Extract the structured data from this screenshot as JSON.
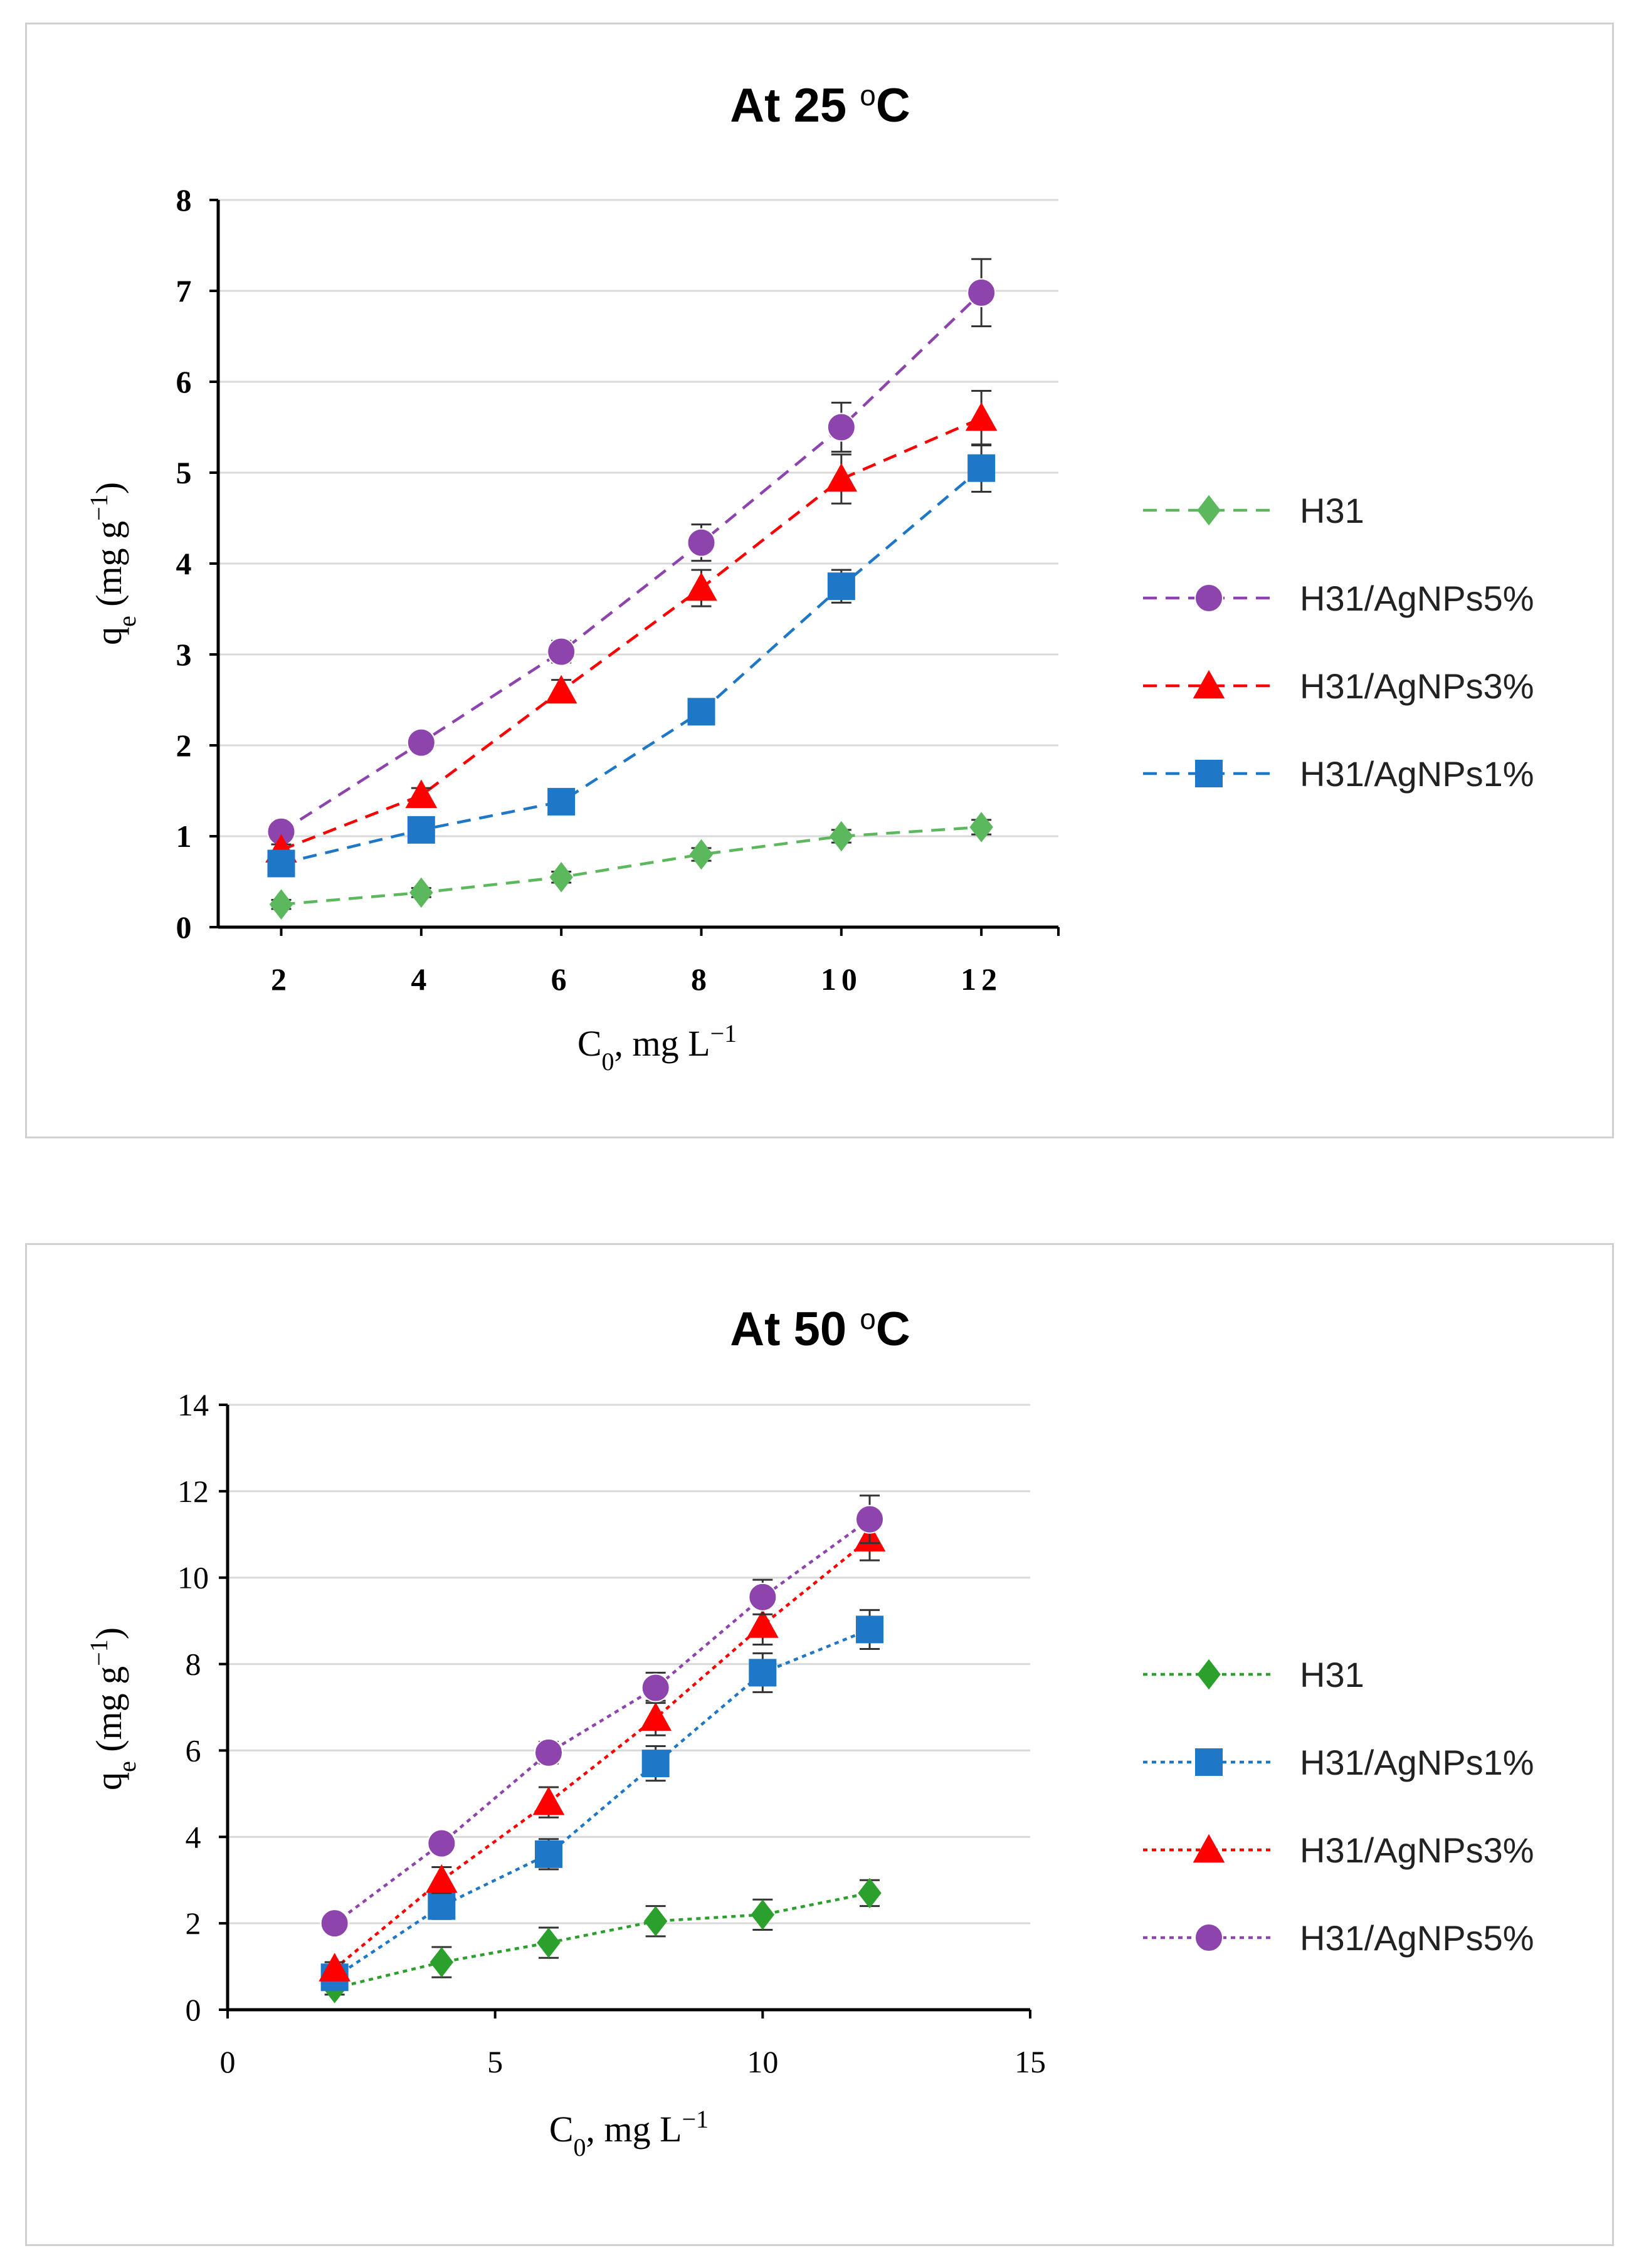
{
  "chart_data": [
    {
      "id": "top",
      "type": "line",
      "title": "At 25 ",
      "title_sup": "o",
      "title_tail": "C",
      "xlabel": "C",
      "xlabel_sub": "0",
      "xlabel_tail": ", mg L",
      "xlabel_sup": "−1",
      "ylabel": "q",
      "ylabel_sub": "e",
      "ylabel_tail": " (mg g",
      "ylabel_sup": "−1",
      "ylabel_end": ")",
      "xlim": [
        1.1,
        13.1
      ],
      "ylim": [
        0,
        8
      ],
      "xticks": [
        "2",
        "4",
        "6",
        "8",
        "10",
        "12"
      ],
      "xtick_values": [
        2,
        4,
        6,
        8,
        10,
        12
      ],
      "yticks": [
        "0",
        "1",
        "2",
        "3",
        "4",
        "5",
        "6",
        "7",
        "8"
      ],
      "ytick_values": [
        0,
        1,
        2,
        3,
        4,
        5,
        6,
        7,
        8
      ],
      "tick_style": "bold",
      "grid": true,
      "legend_position": "right",
      "x": [
        2,
        4,
        6,
        8,
        10,
        12
      ],
      "series": [
        {
          "name": "H31",
          "color": "#5cb85c",
          "marker": "diamond",
          "dash": "dashed",
          "values": [
            0.25,
            0.38,
            0.55,
            0.8,
            1.0,
            1.1
          ],
          "errors": [
            0.05,
            0.05,
            0.06,
            0.07,
            0.07,
            0.08
          ]
        },
        {
          "name": "H31/AgNPs5%",
          "color": "#8e44ad",
          "marker": "circle",
          "dash": "dashed",
          "values": [
            1.05,
            2.03,
            3.03,
            4.23,
            5.5,
            6.98
          ],
          "errors": [
            0.06,
            0.08,
            0.12,
            0.2,
            0.27,
            0.37
          ]
        },
        {
          "name": "H31/AgNPs3%",
          "color": "#ff0000",
          "marker": "triangle",
          "dash": "dashed",
          "values": [
            0.85,
            1.45,
            2.6,
            3.73,
            4.93,
            5.6
          ],
          "errors": [
            0.06,
            0.08,
            0.12,
            0.2,
            0.27,
            0.3
          ]
        },
        {
          "name": "H31/AgNPs1%",
          "color": "#1f77c8",
          "marker": "square",
          "dash": "dashed",
          "values": [
            0.7,
            1.07,
            1.38,
            2.37,
            3.75,
            5.05
          ],
          "errors": [
            0.06,
            0.06,
            0.08,
            0.12,
            0.18,
            0.26
          ]
        }
      ]
    },
    {
      "id": "bottom",
      "type": "line",
      "title": "At 50 ",
      "title_sup": "o",
      "title_tail": "C",
      "xlabel": "C",
      "xlabel_sub": "0",
      "xlabel_tail": ", mg L",
      "xlabel_sup": "−1",
      "ylabel": "q",
      "ylabel_sub": "e",
      "ylabel_tail": " (mg g",
      "ylabel_sup": "−1",
      "ylabel_end": ")",
      "xlim": [
        0,
        15
      ],
      "ylim": [
        0,
        14
      ],
      "xticks": [
        "0",
        "5",
        "10",
        "15"
      ],
      "xtick_values": [
        0,
        5,
        10,
        15
      ],
      "yticks": [
        "0",
        "2",
        "4",
        "6",
        "8",
        "10",
        "12",
        "14"
      ],
      "ytick_values": [
        0,
        2,
        4,
        6,
        8,
        10,
        12,
        14
      ],
      "tick_style": "normal",
      "grid": true,
      "legend_position": "right",
      "x": [
        2,
        4,
        6,
        8,
        10,
        12
      ],
      "series": [
        {
          "name": "H31",
          "color": "#2ca02c",
          "marker": "diamond",
          "dash": "dotted",
          "values": [
            0.5,
            1.1,
            1.55,
            2.05,
            2.2,
            2.7
          ],
          "errors": [
            0.15,
            0.35,
            0.35,
            0.35,
            0.35,
            0.3
          ]
        },
        {
          "name": "H31/AgNPs1%",
          "color": "#1f77c8",
          "marker": "square",
          "dash": "dotted",
          "values": [
            0.75,
            2.4,
            3.6,
            5.7,
            7.8,
            8.8
          ],
          "errors": [
            0.2,
            0.3,
            0.35,
            0.4,
            0.45,
            0.45
          ]
        },
        {
          "name": "H31/AgNPs3%",
          "color": "#ff0000",
          "marker": "triangle",
          "dash": "dotted",
          "values": [
            0.95,
            3.0,
            4.8,
            6.75,
            8.9,
            10.9
          ],
          "errors": [
            0.15,
            0.3,
            0.35,
            0.4,
            0.45,
            0.5
          ]
        },
        {
          "name": "H31/AgNPs5%",
          "color": "#8e44ad",
          "marker": "circle",
          "dash": "dotted",
          "values": [
            2.0,
            3.85,
            5.95,
            7.45,
            9.55,
            11.35
          ],
          "errors": [
            0.1,
            0.2,
            0.25,
            0.35,
            0.4,
            0.55
          ]
        }
      ]
    }
  ]
}
